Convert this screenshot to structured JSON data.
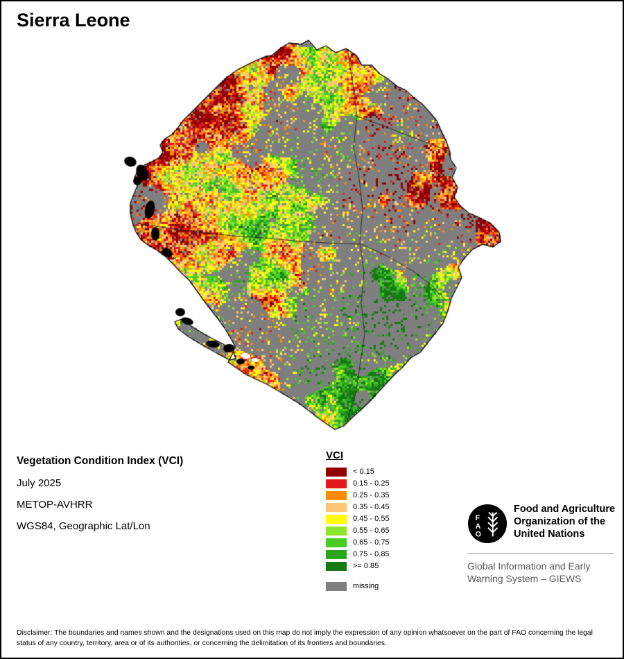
{
  "page": {
    "title": "Sierra Leone"
  },
  "metadata": {
    "product": "Vegetation Condition Index (VCI)",
    "date": "July 2025",
    "sensor": "METOP-AVHRR",
    "projection": "WGS84, Geographic Lat/Lon"
  },
  "legend": {
    "title": "VCI",
    "entries": [
      {
        "label": "< 0.15",
        "color": "#8f0000"
      },
      {
        "label": "0.15 - 0.25",
        "color": "#e31a1c"
      },
      {
        "label": "0.25 - 0.35",
        "color": "#ff8c00"
      },
      {
        "label": "0.35 - 0.45",
        "color": "#fdc574"
      },
      {
        "label": "0.45 - 0.55",
        "color": "#ffff00"
      },
      {
        "label": "0.55 - 0.65",
        "color": "#8ce62b"
      },
      {
        "label": "0.65 - 0.75",
        "color": "#47cc24"
      },
      {
        "label": "0.75 - 0.85",
        "color": "#2aa61d"
      },
      {
        "label": ">= 0.85",
        "color": "#157a12"
      }
    ],
    "missing": {
      "label": "missing",
      "color": "#7f7f7f"
    }
  },
  "branding": {
    "logo_letters": [
      "F",
      "A",
      "O"
    ],
    "org_lines": [
      "Food and Agriculture",
      "Organization of the",
      "United Nations"
    ],
    "giews_lines": [
      "Global Information and Early",
      "Warning System – GIEWS"
    ]
  },
  "disclaimer": {
    "text": "Disclaimer: The boundaries and names shown and the designations used on this map do not imply the expression of any opinion whatsoever on the part of FAO concerning the legal status of any country, territory, area or of its authorities, or concerning the delimitation of its frontiers and boundaries."
  }
}
